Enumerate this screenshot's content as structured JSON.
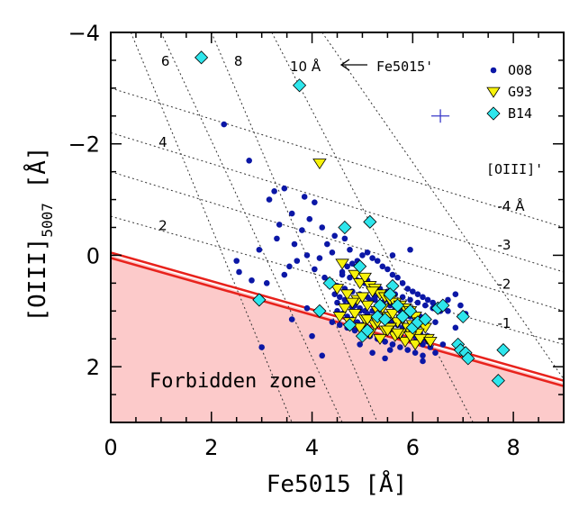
{
  "chart_data": {
    "type": "scatter",
    "xlabel": "Fe5015 [Å]",
    "ylabel_main": "[OIII]",
    "ylabel_sub": "5007",
    "ylabel_unit": " [Å]",
    "xlim": [
      0,
      9
    ],
    "ylim": [
      3,
      -4
    ],
    "x_ticks": [
      "0",
      "2",
      "4",
      "6",
      "8"
    ],
    "y_ticks": [
      "−4",
      "−2",
      "0",
      "2"
    ],
    "forbidden_label": "Forbidden zone",
    "fe5015_label": "10 Å",
    "fe5015_arrow_label": "Fe5015'",
    "oiii_prime_label": "[OIII]'",
    "fe_contour_labels": [
      {
        "text": "6",
        "x": 1.0,
        "y": -3.4
      },
      {
        "text": "8",
        "x": 2.45,
        "y": -3.4
      },
      {
        "text": "4",
        "x": 0.95,
        "y": -1.95
      },
      {
        "text": "2",
        "x": 0.95,
        "y": -0.45
      }
    ],
    "oiii_contour_labels": [
      {
        "text": "-4 Å",
        "x": 7.9,
        "y": -0.8
      },
      {
        "text": "-3",
        "x": 7.9,
        "y": -0.1
      },
      {
        "text": "-2",
        "x": 7.9,
        "y": 0.6
      },
      {
        "text": "-1",
        "x": 7.9,
        "y": 1.3
      }
    ],
    "boundary_line": {
      "x": [
        0,
        9
      ],
      "y": [
        0.0,
        2.3
      ],
      "color": "#e8221c"
    },
    "errorbar": {
      "x": 6.55,
      "y": -2.5,
      "xerr": 0.18,
      "yerr": 0.12,
      "color": "#3a3ac8"
    },
    "legend": [
      {
        "label": "O08",
        "marker": "circle",
        "color": "#0b17a6"
      },
      {
        "label": "G93",
        "marker": "triangle",
        "color": "#f7f20a"
      },
      {
        "label": "B14",
        "marker": "diamond",
        "color": "#2ee6ec"
      }
    ],
    "series": [
      {
        "name": "O08",
        "x": [
          2.25,
          2.75,
          3.45,
          3.25,
          3.15,
          3.85,
          4.05,
          3.6,
          3.95,
          3.35,
          3.8,
          4.2,
          4.45,
          4.3,
          4.65,
          4.75,
          4.4,
          4.15,
          3.7,
          3.55,
          3.45,
          3.1,
          2.8,
          2.55,
          2.5,
          2.95,
          3.3,
          3.65,
          3.9,
          4.05,
          4.25,
          4.35,
          4.5,
          4.6,
          4.7,
          4.8,
          4.9,
          5.0,
          5.1,
          5.2,
          5.3,
          5.4,
          5.5,
          5.6,
          5.7,
          5.8,
          5.9,
          6.0,
          6.1,
          6.2,
          6.3,
          6.4,
          6.5,
          6.6,
          6.7,
          6.85,
          6.95,
          7.05,
          4.45,
          4.55,
          4.65,
          4.75,
          4.85,
          4.95,
          5.05,
          5.15,
          5.25,
          5.35,
          5.45,
          5.55,
          5.65,
          5.75,
          5.85,
          5.95,
          6.05,
          6.15,
          6.25,
          4.5,
          4.6,
          4.7,
          4.8,
          4.9,
          5.0,
          5.1,
          5.2,
          5.3,
          5.4,
          5.5,
          5.6,
          5.7,
          5.8,
          5.9,
          6.0,
          6.1,
          6.2,
          6.3,
          4.4,
          4.55,
          4.7,
          4.85,
          5.0,
          5.15,
          5.3,
          5.45,
          5.6,
          5.75,
          5.9,
          6.05,
          6.2,
          6.35,
          4.35,
          4.5,
          4.65,
          4.8,
          4.95,
          5.1,
          5.25,
          5.4,
          5.55,
          5.7,
          5.85,
          6.0,
          6.15,
          6.3,
          6.45,
          4.6,
          4.75,
          4.9,
          5.05,
          5.2,
          5.35,
          5.5,
          5.65,
          5.8,
          5.95,
          6.1,
          6.25,
          6.4,
          6.55,
          4.5,
          4.65,
          4.8,
          4.95,
          5.1,
          5.25,
          5.4,
          5.55,
          5.7,
          5.85,
          6.0,
          6.15,
          6.3,
          4.7,
          4.85,
          5.0,
          5.15,
          5.3,
          5.45,
          5.6,
          5.75,
          5.9,
          6.05,
          6.2,
          3.0,
          3.6,
          3.9,
          4.0,
          4.2,
          5.55,
          5.85,
          6.05,
          6.2,
          6.45,
          6.6,
          6.85,
          6.7,
          4.9,
          5.1,
          5.6,
          5.95,
          4.95,
          5.2,
          5.45
        ],
        "y": [
          -2.35,
          -1.7,
          -1.2,
          -1.15,
          -1.0,
          -1.05,
          -0.95,
          -0.75,
          -0.65,
          -0.55,
          -0.45,
          -0.5,
          -0.35,
          -0.2,
          -0.3,
          -0.1,
          -0.05,
          0.05,
          0.1,
          0.2,
          0.35,
          0.5,
          0.45,
          0.3,
          0.1,
          -0.1,
          -0.3,
          -0.2,
          0.0,
          0.25,
          0.4,
          0.55,
          0.6,
          0.3,
          0.2,
          0.15,
          0.1,
          0.0,
          -0.05,
          0.05,
          0.1,
          0.2,
          0.25,
          0.35,
          0.4,
          0.5,
          0.6,
          0.65,
          0.7,
          0.75,
          0.8,
          0.85,
          0.9,
          0.95,
          1.0,
          0.7,
          0.9,
          1.05,
          0.7,
          0.75,
          0.8,
          0.85,
          0.9,
          0.95,
          1.0,
          0.8,
          0.75,
          0.7,
          0.8,
          0.85,
          0.95,
          1.0,
          1.05,
          1.1,
          1.15,
          1.2,
          1.25,
          1.0,
          1.05,
          1.1,
          1.15,
          1.2,
          1.25,
          1.3,
          1.0,
          1.05,
          1.1,
          1.15,
          1.2,
          1.25,
          1.3,
          1.35,
          1.4,
          1.45,
          1.5,
          1.55,
          1.2,
          1.25,
          1.3,
          1.35,
          1.4,
          1.45,
          1.5,
          1.55,
          1.6,
          1.45,
          1.5,
          1.55,
          1.6,
          1.65,
          0.5,
          0.55,
          0.6,
          0.65,
          0.7,
          0.75,
          0.8,
          0.85,
          0.9,
          0.95,
          1.0,
          1.05,
          1.1,
          1.15,
          1.2,
          0.35,
          0.4,
          0.45,
          0.5,
          0.55,
          0.6,
          0.65,
          0.7,
          0.75,
          0.8,
          0.85,
          0.9,
          0.95,
          1.0,
          0.85,
          0.9,
          0.95,
          1.0,
          1.05,
          1.1,
          1.15,
          1.2,
          1.25,
          1.3,
          1.35,
          1.4,
          1.45,
          1.3,
          1.35,
          1.4,
          1.45,
          1.5,
          1.55,
          1.6,
          1.65,
          1.7,
          1.75,
          1.8,
          1.65,
          1.15,
          0.95,
          1.45,
          1.8,
          1.7,
          1.55,
          1.45,
          1.9,
          1.75,
          1.6,
          1.3,
          0.8,
          0.2,
          0.45,
          0.0,
          -0.1,
          1.6,
          1.75,
          1.85
        ]
      },
      {
        "name": "G93",
        "x": [
          4.15,
          4.6,
          4.85,
          4.95,
          5.05,
          5.15,
          5.25,
          5.35,
          5.45,
          5.55,
          5.65,
          5.75,
          5.85,
          5.95,
          6.05,
          6.15,
          6.25,
          4.5,
          4.7,
          4.9,
          5.1,
          5.3,
          5.5,
          5.7,
          5.9,
          6.1,
          6.3,
          4.65,
          4.85,
          5.05,
          5.25,
          5.45,
          5.65,
          5.85,
          6.05,
          4.55,
          4.75,
          4.95,
          5.15,
          5.35,
          5.55,
          5.75,
          5.95,
          6.15,
          6.35,
          4.8,
          5.0,
          5.2,
          5.4,
          5.6,
          5.8,
          6.0,
          5.1,
          5.3,
          5.5,
          5.7
        ],
        "y": [
          -1.65,
          0.15,
          0.35,
          0.5,
          0.4,
          0.55,
          0.6,
          0.7,
          0.75,
          0.8,
          0.85,
          0.9,
          0.95,
          1.0,
          1.1,
          1.2,
          1.3,
          0.6,
          0.7,
          0.8,
          0.9,
          1.0,
          1.1,
          1.2,
          1.3,
          1.4,
          1.5,
          0.95,
          1.05,
          1.15,
          1.25,
          1.35,
          1.45,
          1.55,
          1.6,
          1.1,
          1.2,
          1.3,
          1.4,
          1.5,
          1.3,
          1.4,
          1.45,
          1.5,
          1.55,
          0.85,
          0.75,
          0.65,
          0.95,
          1.05,
          1.15,
          1.25,
          1.15,
          1.2,
          1.35,
          1.4
        ]
      },
      {
        "name": "B14",
        "x": [
          1.8,
          3.75,
          4.65,
          5.15,
          2.95,
          4.15,
          4.95,
          4.35,
          5.6,
          5.7,
          5.8,
          5.55,
          5.95,
          6.0,
          6.1,
          6.25,
          6.5,
          6.6,
          7.0,
          6.9,
          6.95,
          7.05,
          7.1,
          7.8,
          7.7,
          4.75,
          5.0,
          5.35,
          5.1,
          5.3,
          5.45
        ],
        "y": [
          -3.55,
          -3.05,
          -0.5,
          -0.6,
          0.8,
          1.0,
          0.2,
          0.5,
          0.55,
          0.9,
          1.1,
          0.7,
          1.0,
          1.3,
          1.2,
          1.15,
          0.95,
          0.9,
          1.1,
          1.6,
          1.7,
          1.75,
          1.85,
          1.7,
          2.25,
          1.25,
          1.45,
          0.9,
          1.35,
          1.1,
          1.15
        ]
      }
    ]
  }
}
